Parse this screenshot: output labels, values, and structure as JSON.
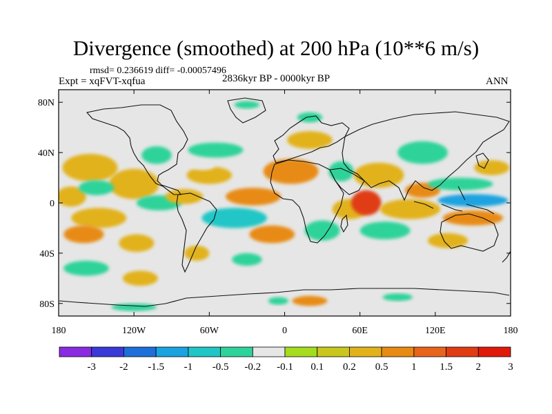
{
  "chart_data": {
    "type": "heatmap",
    "title": "Divergence (smoothed) at 200 hPa (10**6 m/s)",
    "stats": "rmsd= 0.236619 diff= -0.00057496",
    "experiment": "Expt = xqFVT-xqfua",
    "period": "2836kyr BP - 0000kyr BP",
    "season": "ANN",
    "xlim": [
      -180,
      180
    ],
    "ylim": [
      -90,
      90
    ],
    "x_ticks": [
      {
        "value": -180,
        "label": "180"
      },
      {
        "value": -120,
        "label": "120W"
      },
      {
        "value": -60,
        "label": "60W"
      },
      {
        "value": 0,
        "label": "0"
      },
      {
        "value": 60,
        "label": "60E"
      },
      {
        "value": 120,
        "label": "120E"
      },
      {
        "value": 180,
        "label": "180"
      }
    ],
    "y_ticks": [
      {
        "value": 80,
        "label": "80N"
      },
      {
        "value": 40,
        "label": "40N"
      },
      {
        "value": 0,
        "label": "0"
      },
      {
        "value": -40,
        "label": "40S"
      },
      {
        "value": -80,
        "label": "80S"
      }
    ],
    "colorbar": {
      "levels": [
        "-3",
        "-2",
        "-1.5",
        "-1",
        "-0.5",
        "-0.2",
        "-0.1",
        "0.1",
        "0.2",
        "0.5",
        "1",
        "1.5",
        "2",
        "3"
      ],
      "colors": [
        "#8a2be2",
        "#3a3ad8",
        "#1e6fd9",
        "#1aa3e0",
        "#21c6c6",
        "#2ed39a",
        "#e6e6e6",
        "#a6dc1e",
        "#c9c61e",
        "#e2b21a",
        "#e88b12",
        "#e8641a",
        "#e03c14",
        "#e01a0a"
      ]
    },
    "fields": [
      {
        "lon": -155,
        "lat": 28,
        "rx": 22,
        "ry": 11,
        "value": 0.35
      },
      {
        "lon": -120,
        "lat": 15,
        "rx": 20,
        "ry": 12,
        "value": 0.3
      },
      {
        "lon": -170,
        "lat": 5,
        "rx": 12,
        "ry": 8,
        "value": 0.2
      },
      {
        "lon": -148,
        "lat": -12,
        "rx": 22,
        "ry": 8,
        "value": 0.3
      },
      {
        "lon": -160,
        "lat": -25,
        "rx": 16,
        "ry": 7,
        "value": 0.7
      },
      {
        "lon": -118,
        "lat": -32,
        "rx": 14,
        "ry": 7,
        "value": 0.35
      },
      {
        "lon": -158,
        "lat": -52,
        "rx": 18,
        "ry": 6,
        "value": -0.3
      },
      {
        "lon": -115,
        "lat": -60,
        "rx": 14,
        "ry": 6,
        "value": 0.2
      },
      {
        "lon": -102,
        "lat": 38,
        "rx": 12,
        "ry": 7,
        "value": -0.3
      },
      {
        "lon": -150,
        "lat": 12,
        "rx": 14,
        "ry": 6,
        "value": -0.3
      },
      {
        "lon": -100,
        "lat": 0,
        "rx": 18,
        "ry": 6,
        "value": -0.4
      },
      {
        "lon": -80,
        "lat": 5,
        "rx": 15,
        "ry": 6,
        "value": 0.3
      },
      {
        "lon": -60,
        "lat": 22,
        "rx": 18,
        "ry": 7,
        "value": 0.3
      },
      {
        "lon": -55,
        "lat": 42,
        "rx": 22,
        "ry": 6,
        "value": -0.3
      },
      {
        "lon": -40,
        "lat": 58,
        "rx": 12,
        "ry": 5,
        "value": -0.2
      },
      {
        "lon": -40,
        "lat": -12,
        "rx": 26,
        "ry": 8,
        "value": -0.8
      },
      {
        "lon": -25,
        "lat": 5,
        "rx": 22,
        "ry": 7,
        "value": 0.6
      },
      {
        "lon": -10,
        "lat": -25,
        "rx": 18,
        "ry": 7,
        "value": 0.7
      },
      {
        "lon": -70,
        "lat": -40,
        "rx": 10,
        "ry": 6,
        "value": 0.3
      },
      {
        "lon": -30,
        "lat": -45,
        "rx": 12,
        "ry": 5,
        "value": -0.3
      },
      {
        "lon": 5,
        "lat": 25,
        "rx": 22,
        "ry": 10,
        "value": 0.5
      },
      {
        "lon": 20,
        "lat": 50,
        "rx": 18,
        "ry": 7,
        "value": 0.2
      },
      {
        "lon": 30,
        "lat": -22,
        "rx": 14,
        "ry": 8,
        "value": -0.4
      },
      {
        "lon": 45,
        "lat": 25,
        "rx": 10,
        "ry": 8,
        "value": -0.3
      },
      {
        "lon": 52,
        "lat": -5,
        "rx": 14,
        "ry": 8,
        "value": 0.3
      },
      {
        "lon": 65,
        "lat": 0,
        "rx": 12,
        "ry": 10,
        "value": 1.5
      },
      {
        "lon": 75,
        "lat": 22,
        "rx": 20,
        "ry": 10,
        "value": 0.4
      },
      {
        "lon": 80,
        "lat": -22,
        "rx": 20,
        "ry": 7,
        "value": -0.3
      },
      {
        "lon": 100,
        "lat": -5,
        "rx": 24,
        "ry": 8,
        "value": 0.3
      },
      {
        "lon": 110,
        "lat": 40,
        "rx": 20,
        "ry": 9,
        "value": -0.5
      },
      {
        "lon": 110,
        "lat": 10,
        "rx": 14,
        "ry": 6,
        "value": 0.7
      },
      {
        "lon": 140,
        "lat": 15,
        "rx": 26,
        "ry": 5,
        "value": -0.4
      },
      {
        "lon": 150,
        "lat": 2,
        "rx": 28,
        "ry": 5,
        "value": -1.2
      },
      {
        "lon": 150,
        "lat": -12,
        "rx": 24,
        "ry": 6,
        "value": 0.5
      },
      {
        "lon": 165,
        "lat": 28,
        "rx": 14,
        "ry": 6,
        "value": 0.3
      },
      {
        "lon": 130,
        "lat": -30,
        "rx": 16,
        "ry": 6,
        "value": 0.2
      },
      {
        "lon": 20,
        "lat": -78,
        "rx": 14,
        "ry": 4,
        "value": 0.5
      },
      {
        "lon": -5,
        "lat": -78,
        "rx": 8,
        "ry": 3,
        "value": -0.3
      },
      {
        "lon": 90,
        "lat": -75,
        "rx": 12,
        "ry": 3,
        "value": -0.3
      },
      {
        "lon": -120,
        "lat": -83,
        "rx": 18,
        "ry": 3,
        "value": -0.3
      },
      {
        "lon": -30,
        "lat": 78,
        "rx": 10,
        "ry": 3,
        "value": -0.3
      },
      {
        "lon": 20,
        "lat": 68,
        "rx": 10,
        "ry": 4,
        "value": -0.3
      },
      {
        "lon": -65,
        "lat": 30,
        "rx": 10,
        "ry": 4,
        "value": -0.2
      }
    ]
  }
}
